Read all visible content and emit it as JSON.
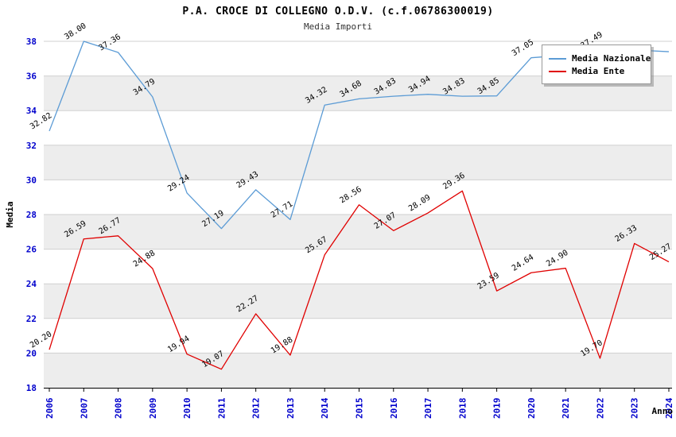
{
  "title": "P.A. CROCE DI COLLEGNO O.D.V. (c.f.06786300019)",
  "subtitle": "Media Importi",
  "axes": {
    "ylabel": "Media",
    "xlabel": "Anno"
  },
  "legend": {
    "items": [
      {
        "label": "Media Nazionale",
        "color": "#5b9bd5"
      },
      {
        "label": "Media Ente",
        "color": "#e00000"
      }
    ]
  },
  "colors": {
    "axis_text": "#0000cc",
    "band_gray": "#ededed",
    "band_white": "#ffffff",
    "gridline": "#d0d0d0",
    "axis_line": "#000000",
    "value_label": "#000000"
  },
  "chart_data": {
    "type": "line",
    "title": "P.A. CROCE DI COLLEGNO O.D.V. (c.f.06786300019)",
    "subtitle": "Media Importi",
    "xlabel": "Anno",
    "ylabel": "Media",
    "ylim": [
      18,
      38
    ],
    "ytick_step": 2,
    "grid": true,
    "legend_position": "top-right",
    "x": [
      "2006",
      "2007",
      "2008",
      "2009",
      "2010",
      "2011",
      "2012",
      "2013",
      "2014",
      "2015",
      "2016",
      "2017",
      "2018",
      "2019",
      "2020",
      "2021",
      "2022",
      "2023",
      "2024"
    ],
    "series": [
      {
        "name": "Media Nazionale",
        "color": "#5b9bd5",
        "values": [
          32.82,
          38.0,
          37.36,
          34.79,
          29.24,
          27.19,
          29.43,
          27.71,
          34.32,
          34.68,
          34.83,
          34.94,
          34.83,
          34.85,
          37.05,
          37.2,
          37.49,
          37.5,
          37.4
        ],
        "labels": [
          "32.82",
          "38.00",
          "37.36",
          "34.79",
          "29.24",
          "27.19",
          "29.43",
          "27.71",
          "34.32",
          "34.68",
          "34.83",
          "34.94",
          "34.83",
          "34.85",
          "37.05",
          null,
          "37.49",
          null,
          null
        ]
      },
      {
        "name": "Media Ente",
        "color": "#e00000",
        "values": [
          20.2,
          26.59,
          26.77,
          24.88,
          19.94,
          19.07,
          22.27,
          19.88,
          25.67,
          28.56,
          27.07,
          28.09,
          29.36,
          23.59,
          24.64,
          24.9,
          19.7,
          26.33,
          25.27
        ],
        "labels": [
          "20.20",
          "26.59",
          "26.77",
          "24.88",
          "19.94",
          "19.07",
          "22.27",
          "19.88",
          "25.67",
          "28.56",
          "27.07",
          "28.09",
          "29.36",
          "23.59",
          "24.64",
          "24.90",
          "19.70",
          "26.33",
          "25.27"
        ]
      }
    ]
  }
}
